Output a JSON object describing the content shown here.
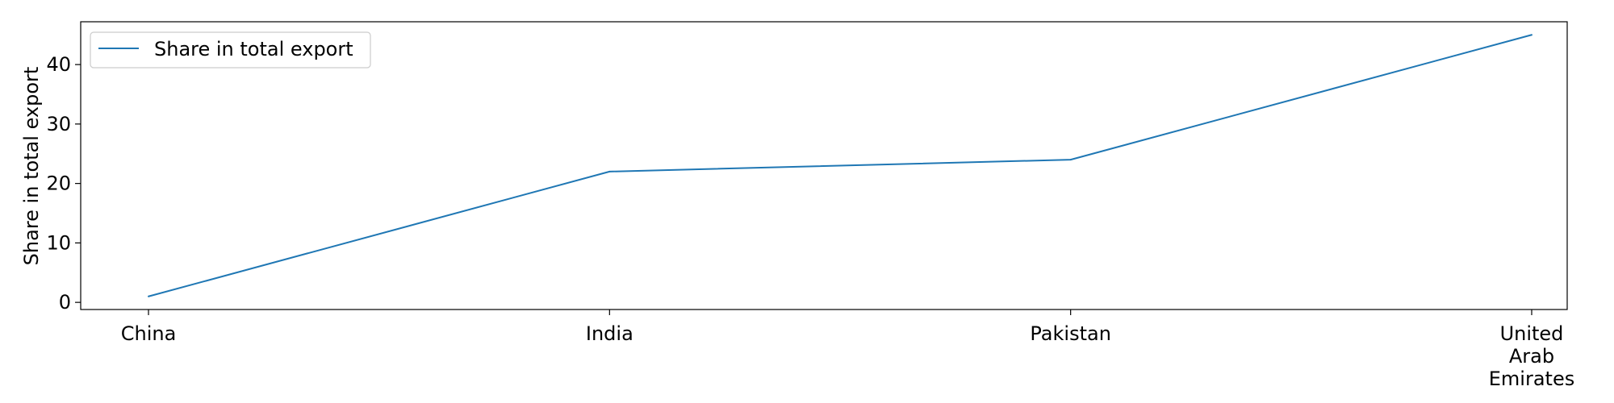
{
  "chart_data": {
    "type": "line",
    "categories": [
      "China",
      "India",
      "Pakistan",
      "United Arab Emirates"
    ],
    "category_label_lines": [
      [
        "China"
      ],
      [
        "India"
      ],
      [
        "Pakistan"
      ],
      [
        "United",
        "Arab",
        "Emirates"
      ]
    ],
    "series": [
      {
        "name": "Share in total export",
        "values": [
          1,
          22,
          24,
          45
        ],
        "color": "#1f77b4"
      }
    ],
    "xlabel": "",
    "ylabel": "Share in total export",
    "ylim": [
      -1.2,
      47.2
    ],
    "yticks": [
      0,
      10,
      20,
      30,
      40
    ],
    "grid": false,
    "legend_position": "top-left"
  }
}
